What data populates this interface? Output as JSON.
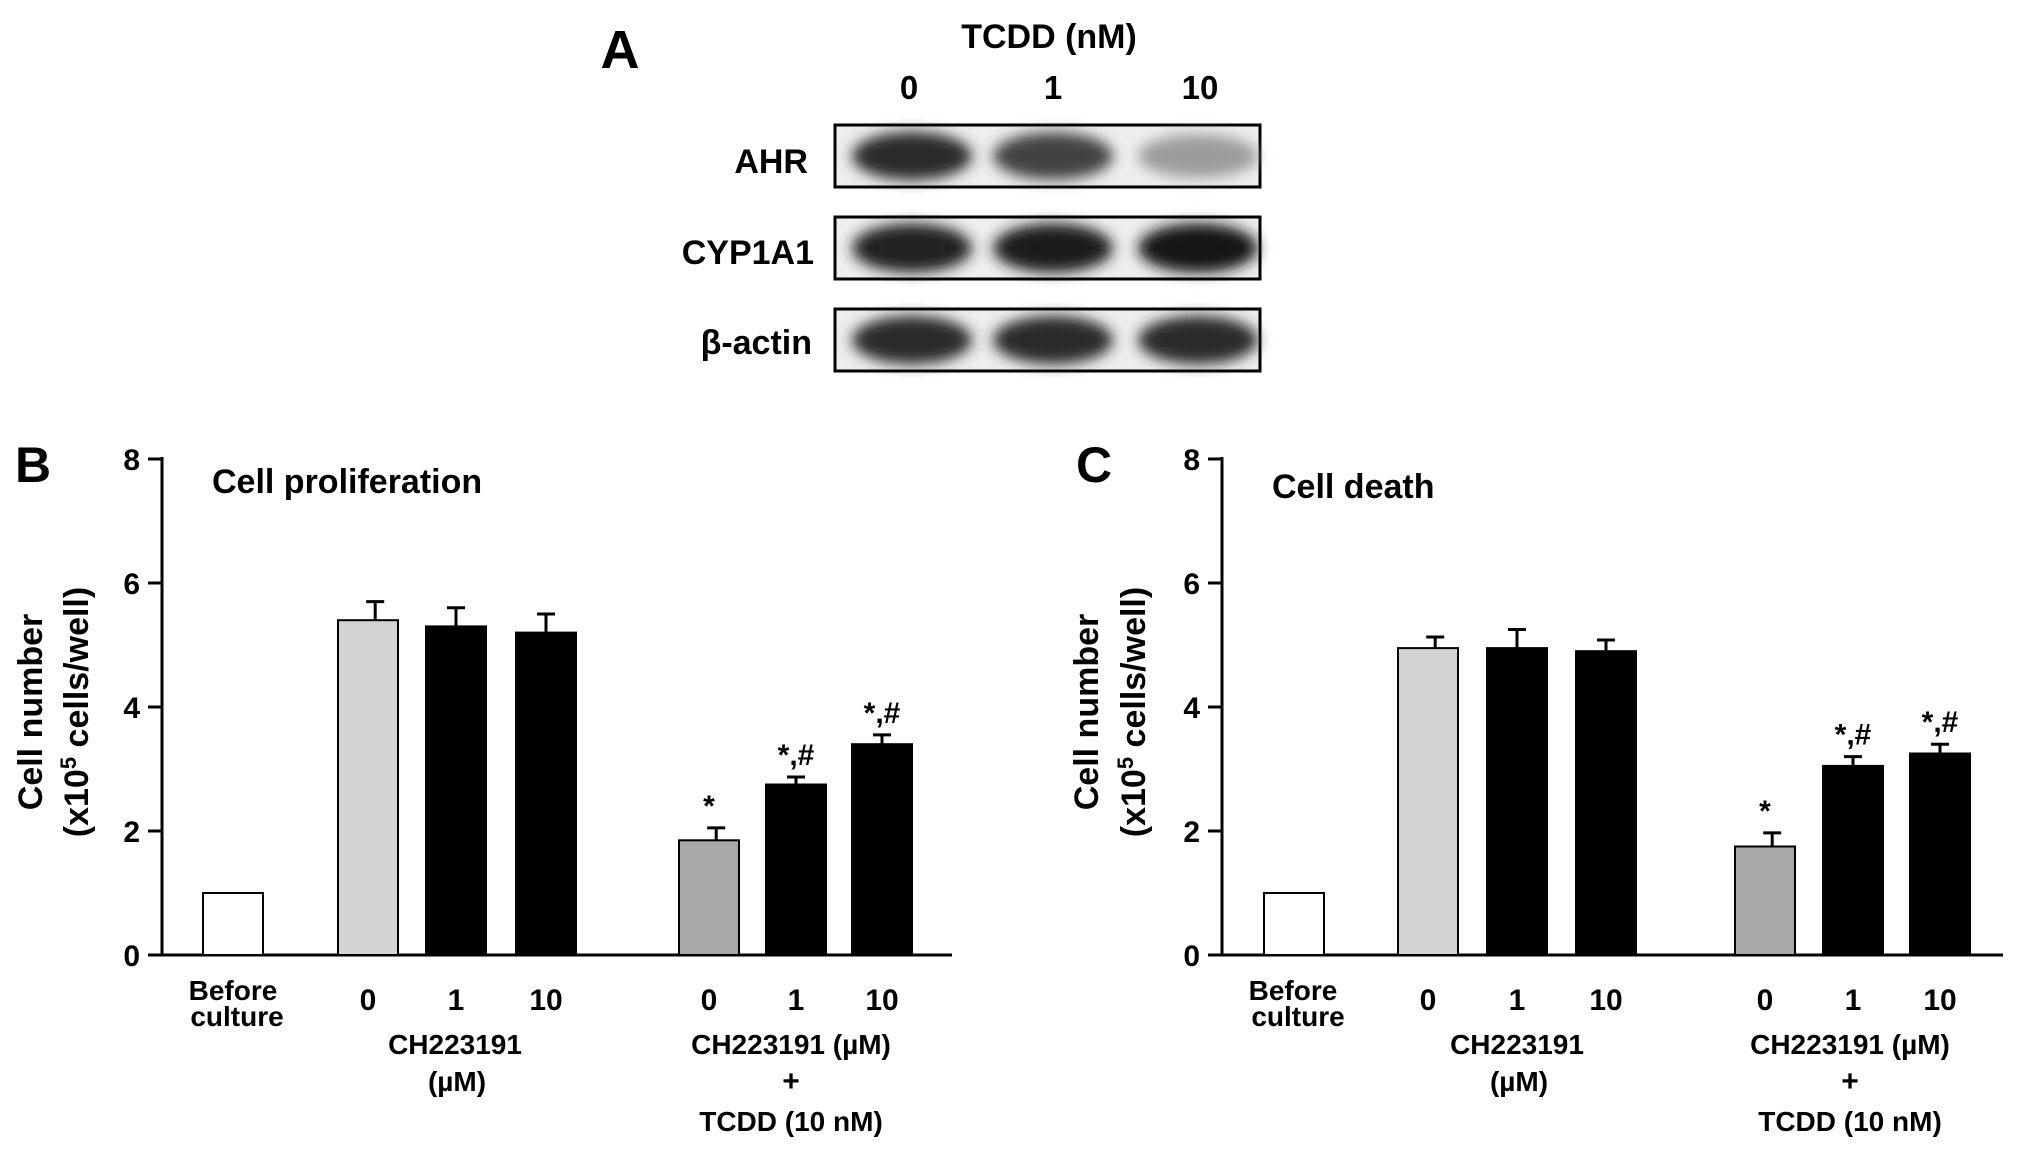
{
  "panel_a": {
    "label": "A",
    "treatment_label": "TCDD (nM)",
    "lanes": [
      "0",
      "1",
      "10"
    ],
    "rows": [
      {
        "name": "AHR",
        "intensity": [
          0.85,
          0.75,
          0.35
        ]
      },
      {
        "name": "CYP1A1",
        "intensity": [
          0.9,
          0.92,
          0.95
        ]
      },
      {
        "name": "β-actin",
        "intensity": [
          0.85,
          0.85,
          0.85
        ]
      }
    ]
  },
  "chart_data": [
    {
      "type": "bar",
      "panel_label": "B",
      "title": "Cell proliferation",
      "ylabel_main": "Cell number",
      "ylabel_unit_pre": "(x10",
      "ylabel_unit_sup": "5",
      "ylabel_unit_post": " cells/well)",
      "ylim": [
        0,
        8
      ],
      "yticks": [
        "0",
        "2",
        "4",
        "6",
        "8"
      ],
      "categories": [
        "Before culture",
        "0",
        "1",
        "10",
        "0",
        "1",
        "10"
      ],
      "values": [
        1.0,
        5.4,
        5.3,
        5.2,
        1.85,
        2.75,
        3.4
      ],
      "errors": [
        0,
        0.3,
        0.3,
        0.3,
        0.2,
        0.12,
        0.15
      ],
      "annotations": [
        "",
        "",
        "",
        "",
        "*",
        "*,#",
        "*,#"
      ],
      "fills": [
        "#ffffff",
        "#d4d4d4",
        "#000000",
        "#000000",
        "#a8a8a8",
        "#000000",
        "#000000"
      ],
      "group_labels": {
        "before_line1": "Before",
        "before_line2": "culture",
        "ch_line1": "CH223191",
        "ch_line2": "(µM)",
        "combo_line1": "CH223191 (µM)",
        "combo_line2": "+",
        "combo_line3": "TCDD (10 nM)"
      }
    },
    {
      "type": "bar",
      "panel_label": "C",
      "title": "Cell death",
      "ylabel_main": "Cell number",
      "ylabel_unit_pre": "(x10",
      "ylabel_unit_sup": "5",
      "ylabel_unit_post": " cells/well)",
      "ylim": [
        0,
        8
      ],
      "yticks": [
        "0",
        "2",
        "4",
        "6",
        "8"
      ],
      "categories": [
        "Before culture",
        "0",
        "1",
        "10",
        "0",
        "1",
        "10"
      ],
      "values": [
        1.0,
        4.95,
        4.95,
        4.9,
        1.75,
        3.05,
        3.25
      ],
      "errors": [
        0,
        0.18,
        0.3,
        0.18,
        0.22,
        0.15,
        0.15
      ],
      "annotations": [
        "",
        "",
        "",
        "",
        "*",
        "*,#",
        "*,#"
      ],
      "fills": [
        "#ffffff",
        "#d4d4d4",
        "#000000",
        "#000000",
        "#a8a8a8",
        "#000000",
        "#000000"
      ],
      "group_labels": {
        "before_line1": "Before",
        "before_line2": "culture",
        "ch_line1": "CH223191",
        "ch_line2": "(µM)",
        "combo_line1": "CH223191 (µM)",
        "combo_line2": "+",
        "combo_line3": "TCDD (10 nM)"
      }
    }
  ]
}
